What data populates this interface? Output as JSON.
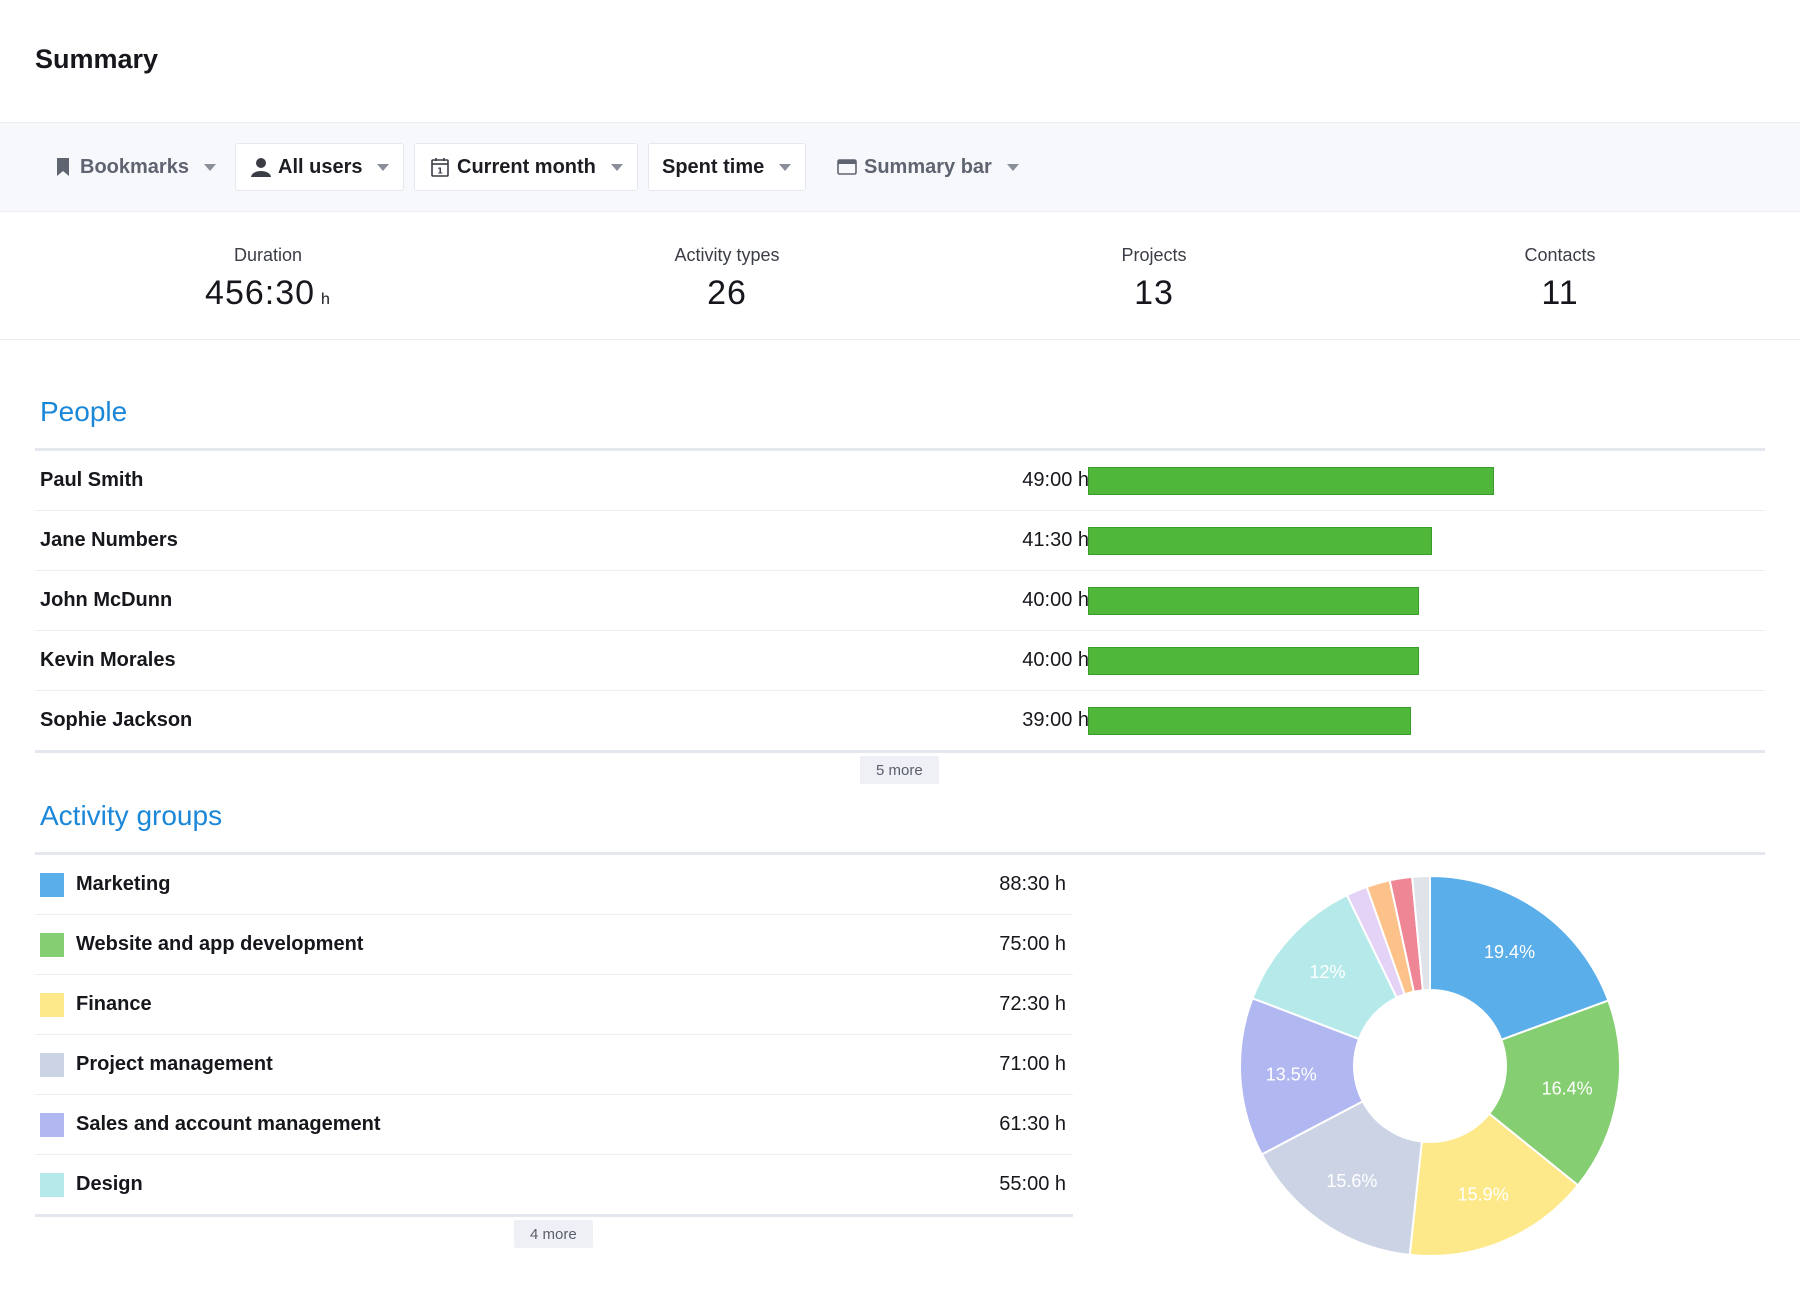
{
  "header": {
    "title": "Summary"
  },
  "toolbar": {
    "bookmarks": "Bookmarks",
    "users": "All users",
    "period": "Current month",
    "metric": "Spent time",
    "view": "Summary bar"
  },
  "stats": [
    {
      "label": "Duration",
      "value": "456:30",
      "unit": "h"
    },
    {
      "label": "Activity types",
      "value": "26"
    },
    {
      "label": "Projects",
      "value": "13"
    },
    {
      "label": "Contacts",
      "value": "11"
    }
  ],
  "people": {
    "title": "People",
    "more": "5 more",
    "rows": [
      {
        "name": "Paul Smith",
        "hours": "49:00 h",
        "value": 49.0
      },
      {
        "name": "Jane Numbers",
        "hours": "41:30 h",
        "value": 41.5
      },
      {
        "name": "John McDunn",
        "hours": "40:00 h",
        "value": 40.0
      },
      {
        "name": "Kevin Morales",
        "hours": "40:00 h",
        "value": 40.0
      },
      {
        "name": "Sophie Jackson",
        "hours": "39:00 h",
        "value": 39.0
      }
    ]
  },
  "groups": {
    "title": "Activity groups",
    "more": "4 more",
    "rows": [
      {
        "name": "Marketing",
        "hours": "88:30 h",
        "color": "#5aaeea"
      },
      {
        "name": "Website and app development",
        "hours": "75:00 h",
        "color": "#86ce72"
      },
      {
        "name": "Finance",
        "hours": "72:30 h",
        "color": "#fde98a"
      },
      {
        "name": "Project management",
        "hours": "71:00 h",
        "color": "#cbd3e5"
      },
      {
        "name": "Sales and account management",
        "hours": "61:30 h",
        "color": "#b0b7f1"
      },
      {
        "name": "Design",
        "hours": "55:00 h",
        "color": "#b6eaea"
      }
    ]
  },
  "chart_data": {
    "type": "pie",
    "slices": [
      {
        "value": 19.4,
        "label": "19.4%",
        "color": "#5aaeea"
      },
      {
        "value": 16.4,
        "label": "16.4%",
        "color": "#86ce72"
      },
      {
        "value": 15.9,
        "label": "15.9%",
        "color": "#fde98a"
      },
      {
        "value": 15.6,
        "label": "15.6%",
        "color": "#cbd3e5"
      },
      {
        "value": 13.5,
        "label": "13.5%",
        "color": "#b0b7f1"
      },
      {
        "value": 12.0,
        "label": "12%",
        "color": "#b6eaea"
      },
      {
        "value": 1.8,
        "label": "",
        "color": "#e5d3f7"
      },
      {
        "value": 2.0,
        "label": "",
        "color": "#fcc28a"
      },
      {
        "value": 1.9,
        "label": "",
        "color": "#ee8696"
      },
      {
        "value": 1.5,
        "label": "",
        "color": "#dfe3ea"
      }
    ]
  }
}
